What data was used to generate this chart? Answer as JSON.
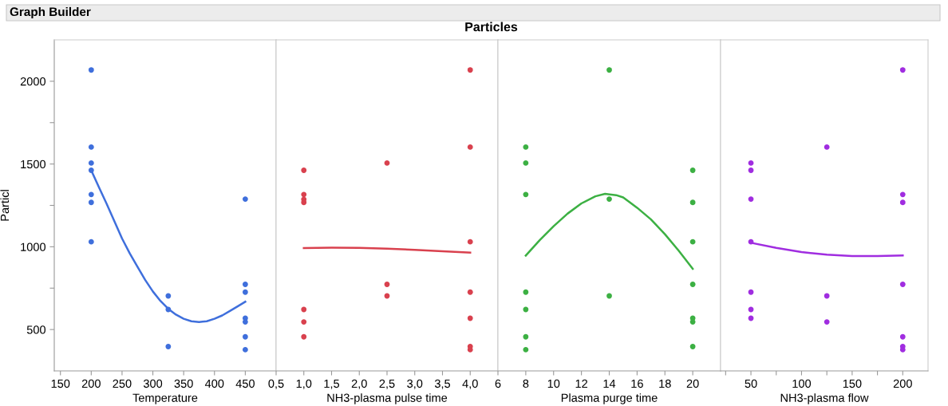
{
  "chart_data": [
    {
      "type": "scatter",
      "annotations": [
        "Graph Builder"
      ],
      "xlabel": "Temperature",
      "ylabel": "Particl",
      "xlim": [
        140,
        500
      ],
      "xticks": [
        150,
        200,
        250,
        300,
        350,
        400,
        450
      ],
      "ylim": [
        250,
        2250
      ],
      "yticks": [
        500,
        {
          "value": 750,
          "label": null
        },
        1000,
        {
          "value": 1250,
          "label": null
        },
        1500,
        {
          "value": 1750,
          "label": null
        },
        2000
      ],
      "grid": false,
      "series": [
        {
          "marker": "circle",
          "color": "#3f6fdc",
          "x": [
            200,
            200,
            200,
            200,
            200,
            200,
            200,
            325,
            325,
            325,
            450,
            450,
            450,
            450,
            450,
            450,
            450
          ],
          "values": [
            2068,
            1602,
            1506,
            1462,
            1316,
            1268,
            1030,
            703,
            621,
            397,
            1288,
            773,
            726,
            568,
            546,
            456,
            378
          ]
        },
        {
          "type": "line",
          "color": "#3f6fdc",
          "x": [
            200,
            212.5,
            225,
            237.5,
            250,
            262.5,
            275,
            287.5,
            300,
            312.5,
            325,
            337.5,
            350,
            362.5,
            375,
            387.5,
            400,
            412.5,
            425,
            437.5,
            450
          ],
          "values": [
            1462,
            1360,
            1260,
            1155,
            1050,
            960,
            880,
            800,
            730,
            672,
            625,
            590,
            565,
            550,
            545,
            550,
            565,
            585,
            612,
            640,
            668
          ]
        }
      ]
    },
    {
      "type": "scatter",
      "title": "Particles",
      "xlabel": "NH3-plasma pulse time",
      "xlim": [
        0.5,
        4.5
      ],
      "xticks": [
        {
          "value": 0.5,
          "label": "0,5"
        },
        {
          "value": 1.0,
          "label": "1,0"
        },
        {
          "value": 1.5,
          "label": "1,5"
        },
        {
          "value": 2.0,
          "label": "2,0"
        },
        {
          "value": 2.5,
          "label": "2,5"
        },
        {
          "value": 3.0,
          "label": "3,0"
        },
        {
          "value": 3.5,
          "label": "3,5"
        },
        {
          "value": 4.0,
          "label": "4,0"
        }
      ],
      "ylim": [
        250,
        2250
      ],
      "tick_labels": "x",
      "grid": false,
      "series": [
        {
          "marker": "circle",
          "color": "#d9414e",
          "x": [
            1,
            1,
            1,
            1,
            1,
            1,
            1,
            2.5,
            2.5,
            2.5,
            4,
            4,
            4,
            4,
            4,
            4,
            4
          ],
          "values": [
            1462,
            1316,
            1286,
            1268,
            621,
            546,
            456,
            1506,
            773,
            703,
            2068,
            1602,
            1030,
            726,
            568,
            397,
            378
          ]
        },
        {
          "type": "line",
          "color": "#d9414e",
          "x": [
            1,
            1.5,
            2,
            2.5,
            3,
            3.5,
            4
          ],
          "values": [
            992,
            994,
            993,
            989,
            981,
            973,
            965
          ]
        }
      ]
    },
    {
      "type": "scatter",
      "xlabel": "Plasma purge time",
      "xlim": [
        6,
        22
      ],
      "xticks": [
        6,
        8,
        10,
        12,
        14,
        16,
        18,
        20
      ],
      "ylim": [
        250,
        2250
      ],
      "tick_labels": "x",
      "grid": false,
      "series": [
        {
          "marker": "circle",
          "color": "#3cb043",
          "x": [
            8,
            8,
            8,
            8,
            8,
            8,
            8,
            14,
            14,
            14,
            20,
            20,
            20,
            20,
            20,
            20,
            20
          ],
          "values": [
            1602,
            1506,
            1316,
            726,
            621,
            456,
            378,
            2068,
            1288,
            703,
            1462,
            1268,
            1030,
            773,
            568,
            546,
            397
          ]
        },
        {
          "type": "line",
          "color": "#3cb043",
          "x": [
            8,
            9,
            10,
            11,
            12,
            13,
            13.7,
            14.5,
            15,
            16,
            17,
            18,
            19,
            20
          ],
          "values": [
            947,
            1040,
            1124,
            1200,
            1262,
            1305,
            1320,
            1312,
            1298,
            1236,
            1165,
            1076,
            975,
            867
          ]
        }
      ]
    },
    {
      "type": "scatter",
      "xlabel": "NH3-plasma flow",
      "xlim": [
        20,
        225
      ],
      "xticks": [
        {
          "value": 25,
          "label": null
        },
        50,
        {
          "value": 75,
          "label": null
        },
        100,
        {
          "value": 125,
          "label": null
        },
        150,
        {
          "value": 175,
          "label": null
        },
        200
      ],
      "ylim": [
        250,
        2250
      ],
      "tick_labels": "x",
      "grid": false,
      "series": [
        {
          "marker": "circle",
          "color": "#a02de0",
          "x": [
            50,
            50,
            50,
            50,
            50,
            50,
            50,
            125,
            125,
            125,
            200,
            200,
            200,
            200,
            200,
            200,
            200
          ],
          "values": [
            1506,
            1462,
            1288,
            1030,
            726,
            621,
            568,
            1602,
            703,
            546,
            2068,
            1316,
            1268,
            773,
            456,
            397,
            378
          ]
        },
        {
          "type": "line",
          "color": "#a02de0",
          "x": [
            50,
            75,
            100,
            125,
            150,
            175,
            200
          ],
          "values": [
            1024,
            993,
            968,
            952,
            944,
            944,
            947
          ]
        }
      ]
    }
  ]
}
